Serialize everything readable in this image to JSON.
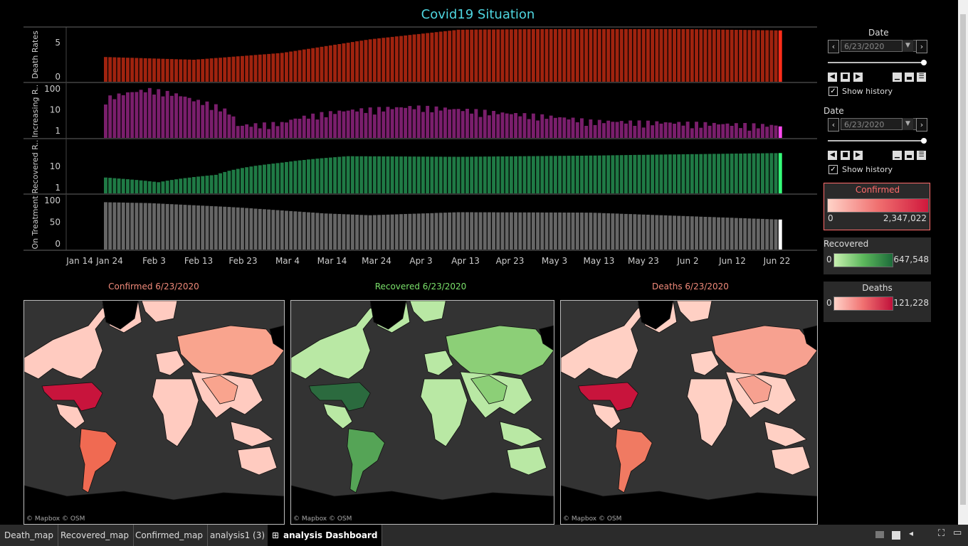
{
  "dashboard_title": "Covid19 Situation",
  "panel_labels": [
    "Death Rates",
    "Increasing R..",
    "Recovered R..",
    "On Treatment"
  ],
  "x_ticks": [
    "Jan 14",
    "Jan 24",
    "Feb 3",
    "Feb 13",
    "Feb 23",
    "Mar 4",
    "Mar 14",
    "Mar 24",
    "Apr 3",
    "Apr 13",
    "Apr 23",
    "May 3",
    "May 13",
    "May 23",
    "Jun 2",
    "Jun 12",
    "Jun 22"
  ],
  "chart_data": [
    {
      "type": "bar",
      "ylabel": "Death Rates",
      "y_ticks": [
        "0",
        "5"
      ],
      "color": "#a0230f",
      "highlight": "#ff2d1a",
      "start": "1/22/2020",
      "end": "6/23/2020",
      "keypoints": [
        [
          0,
          2.9
        ],
        [
          20,
          2.5
        ],
        [
          40,
          3.5
        ],
        [
          60,
          5.5
        ],
        [
          80,
          6.9
        ],
        [
          100,
          7.0
        ],
        [
          130,
          7.0
        ],
        [
          153,
          6.8
        ]
      ]
    },
    {
      "type": "bar",
      "ylabel": "Increasing R..",
      "y_ticks": [
        "1",
        "10",
        "100"
      ],
      "scale": "log",
      "color": "#7a1e6c",
      "highlight": "#ff4aef",
      "start": "1/22/2020",
      "end": "6/23/2020",
      "keypoints": [
        [
          0,
          30
        ],
        [
          10,
          80
        ],
        [
          20,
          25
        ],
        [
          30,
          1.5
        ],
        [
          40,
          2
        ],
        [
          55,
          8
        ],
        [
          70,
          12
        ],
        [
          90,
          6
        ],
        [
          110,
          2.5
        ],
        [
          153,
          1.5
        ]
      ]
    },
    {
      "type": "bar",
      "ylabel": "Recovered R..",
      "y_ticks": [
        "1",
        "10"
      ],
      "scale": "log",
      "color": "#1f7a45",
      "highlight": "#35ff7a",
      "start": "1/22/2020",
      "end": "6/23/2020",
      "keypoints": [
        [
          0,
          3
        ],
        [
          12,
          1.8
        ],
        [
          25,
          4
        ],
        [
          40,
          15
        ],
        [
          55,
          30
        ],
        [
          80,
          28
        ],
        [
          110,
          32
        ],
        [
          153,
          42
        ]
      ]
    },
    {
      "type": "bar",
      "ylabel": "On Treatment",
      "y_ticks": [
        "0",
        "50",
        "100"
      ],
      "color": "#666666",
      "highlight": "#ffffff",
      "start": "1/22/2020",
      "end": "6/23/2020",
      "keypoints": [
        [
          0,
          96
        ],
        [
          10,
          94
        ],
        [
          30,
          84
        ],
        [
          50,
          70
        ],
        [
          60,
          66
        ],
        [
          80,
          73
        ],
        [
          110,
          72
        ],
        [
          153,
          56
        ]
      ]
    }
  ],
  "maps": [
    {
      "title": "Confirmed  6/23/2020",
      "color": "#f08a7a",
      "attribution": "© Mapbox © OSM",
      "scheme": "confirmed"
    },
    {
      "title": "Recovered  6/23/2020",
      "color": "#7ae06a",
      "attribution": "© Mapbox © OSM",
      "scheme": "recovered"
    },
    {
      "title": "Deaths  6/23/2020",
      "color": "#f08a7a",
      "attribution": "© Mapbox © OSM",
      "scheme": "deaths"
    }
  ],
  "controls": [
    {
      "label": "Date",
      "value": "6/23/2020",
      "show_history": "Show history"
    },
    {
      "label": "Date",
      "value": "6/23/2020",
      "show_history": "Show history"
    }
  ],
  "legends": {
    "confirmed": {
      "title": "Confirmed",
      "min": "0",
      "max": "2,347,022",
      "title_color": "#ff6b6b"
    },
    "recovered": {
      "title": "Recovered",
      "min": "0",
      "max": "647,548"
    },
    "deaths": {
      "title": "Deaths",
      "min": "0",
      "max": "121,228"
    }
  },
  "tabs": [
    "Death_map",
    "Recovered_map",
    "Confirmed_map",
    "analysis1 (3)",
    "analysis Dashboard"
  ]
}
